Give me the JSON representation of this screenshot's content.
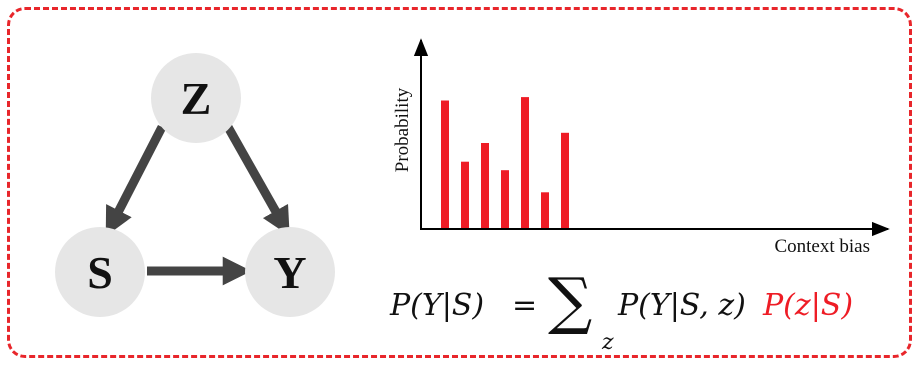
{
  "diagram": {
    "nodes": [
      {
        "id": "Z",
        "label": "Z"
      },
      {
        "id": "S",
        "label": "S"
      },
      {
        "id": "Y",
        "label": "Y"
      }
    ],
    "edges": [
      {
        "from": "Z",
        "to": "S"
      },
      {
        "from": "Z",
        "to": "Y"
      },
      {
        "from": "S",
        "to": "Y"
      }
    ],
    "colors": {
      "node_fill": "#e6e6e6",
      "edge": "#444444",
      "frame": "#e8262b",
      "bars": "#ee1c25"
    }
  },
  "chart_data": {
    "type": "bar",
    "ylabel": "Probability",
    "xlabel": "Context bias",
    "values": [
      0.75,
      0.39,
      0.5,
      0.34,
      0.77,
      0.21,
      0.56
    ],
    "ylim": [
      0,
      1
    ]
  },
  "formula": {
    "lhs": "P(Y|S)",
    "equals": "=",
    "sigma": "∑",
    "sub": "z",
    "term1": "P(Y|S, z)",
    "term2": "P(z|S)"
  }
}
